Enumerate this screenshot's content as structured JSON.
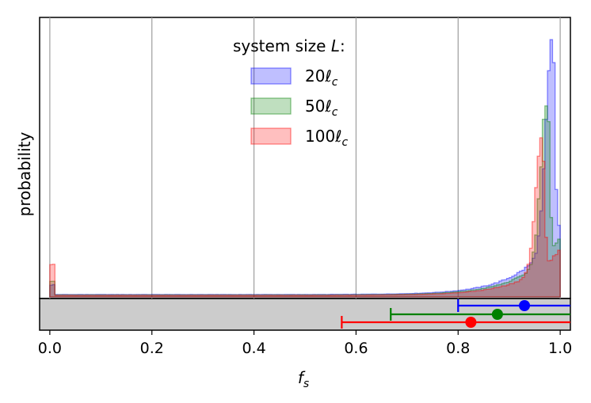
{
  "chart_data": {
    "type": "histogram",
    "title": "",
    "xlabel_main": "f",
    "xlabel_sub": "s",
    "ylabel": "probability",
    "xlim": [
      -0.02,
      1.02
    ],
    "xticks": [
      "0.0",
      "0.2",
      "0.4",
      "0.6",
      "0.8",
      "1.0"
    ],
    "grid": "vertical",
    "legend": {
      "title_prefix": "system size ",
      "title_var": "L",
      "title_suffix": ":",
      "placement": "top-center"
    },
    "series": [
      {
        "name": "20ℓc",
        "num": "20",
        "ell": "ℓ",
        "sub": "c",
        "color": "#0000ff",
        "peak_x": 0.985,
        "spike_0": 0.06,
        "mean": 0.93,
        "err_low": 0.8,
        "err_high": 1.02
      },
      {
        "name": "50ℓc",
        "num": "50",
        "ell": "ℓ",
        "sub": "c",
        "color": "#008000",
        "peak_x": 0.975,
        "spike_0": 0.1,
        "mean": 0.877,
        "err_low": 0.668,
        "err_high": 1.02
      },
      {
        "name": "100ℓc",
        "num": "100",
        "ell": "ℓ",
        "sub": "c",
        "color": "#ff0000",
        "peak_x": 0.965,
        "spike_0": 0.25,
        "mean": 0.825,
        "err_low": 0.572,
        "err_high": 1.02
      }
    ]
  }
}
